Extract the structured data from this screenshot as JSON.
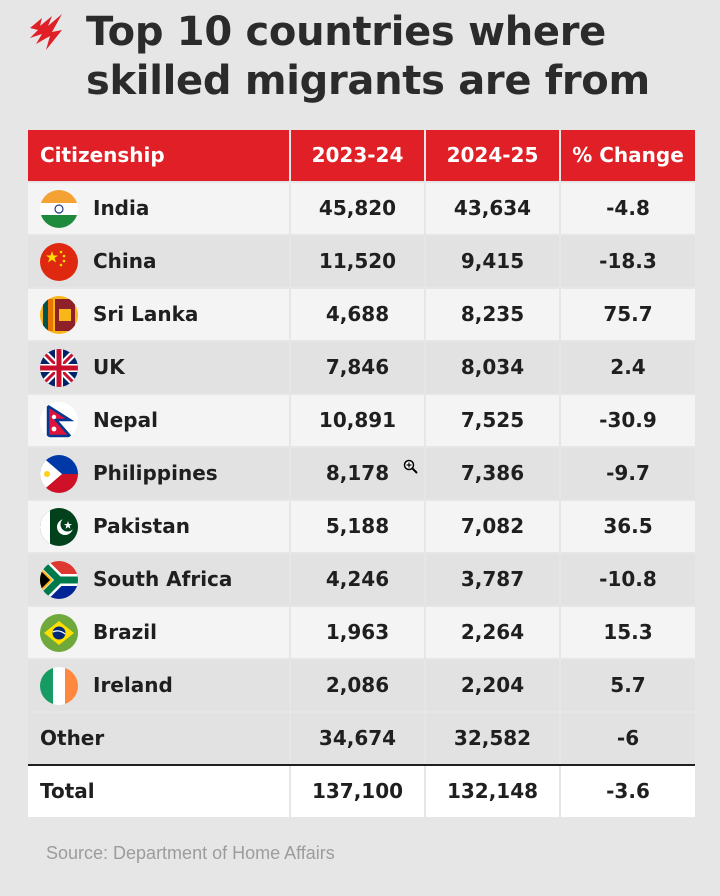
{
  "title": "Top 10 countries where skilled migrants are from",
  "table": {
    "headers": [
      "Citizenship",
      "2023-24",
      "2024-25",
      "% Change"
    ],
    "rows": [
      {
        "country": "India",
        "flag": "india-flag",
        "y2023": "45,820",
        "y2024": "43,634",
        "change": "-4.8"
      },
      {
        "country": "China",
        "flag": "china-flag",
        "y2023": "11,520",
        "y2024": "9,415",
        "change": "-18.3"
      },
      {
        "country": "Sri Lanka",
        "flag": "sri-lanka-flag",
        "y2023": "4,688",
        "y2024": "8,235",
        "change": "75.7"
      },
      {
        "country": "UK",
        "flag": "uk-flag",
        "y2023": "7,846",
        "y2024": "8,034",
        "change": "2.4"
      },
      {
        "country": "Nepal",
        "flag": "nepal-flag",
        "y2023": "10,891",
        "y2024": "7,525",
        "change": "-30.9"
      },
      {
        "country": "Philippines",
        "flag": "philippines-flag",
        "y2023": "8,178",
        "y2024": "7,386",
        "change": "-9.7"
      },
      {
        "country": "Pakistan",
        "flag": "pakistan-flag",
        "y2023": "5,188",
        "y2024": "7,082",
        "change": "36.5"
      },
      {
        "country": "South Africa",
        "flag": "south-africa-flag",
        "y2023": "4,246",
        "y2024": "3,787",
        "change": "-10.8"
      },
      {
        "country": "Brazil",
        "flag": "brazil-flag",
        "y2023": "1,963",
        "y2024": "2,264",
        "change": "15.3"
      },
      {
        "country": "Ireland",
        "flag": "ireland-flag",
        "y2023": "2,086",
        "y2024": "2,204",
        "change": "5.7"
      }
    ],
    "other": {
      "country": "Other",
      "y2023": "34,674",
      "y2024": "32,582",
      "change": "-6"
    },
    "total": {
      "country": "Total",
      "y2023": "137,100",
      "y2024": "132,148",
      "change": "-3.6"
    }
  },
  "source": "Source: Department of Home Affairs",
  "colors": {
    "accent": "#e01f26",
    "title": "#2b2b2b",
    "source": "#9c9c9c"
  },
  "icons": {
    "logo": "sbs-logo-icon",
    "cursor": "zoom-in-cursor-icon"
  }
}
